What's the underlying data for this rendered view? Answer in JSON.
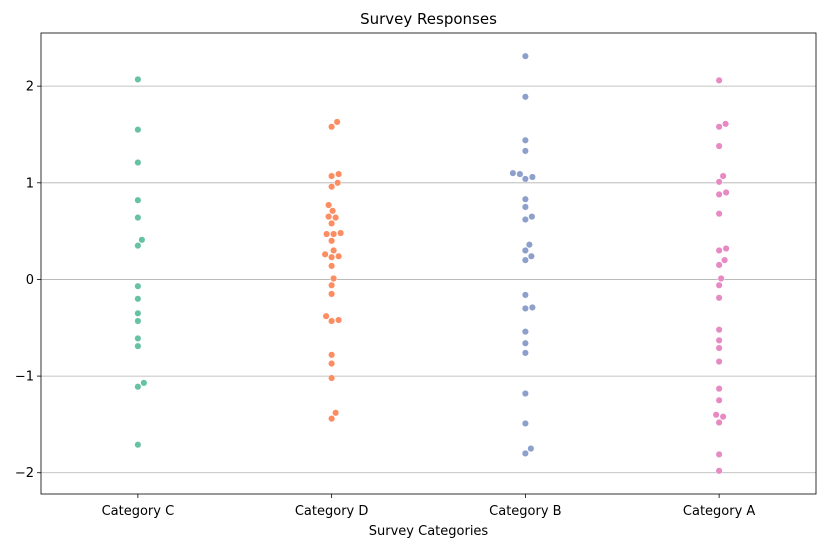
{
  "chart_data": {
    "type": "scatter",
    "title": "Survey Responses",
    "xlabel": "Survey Categories",
    "ylabel": "",
    "categories": [
      "Category C",
      "Category D",
      "Category B",
      "Category A"
    ],
    "ylim": [
      -2.22,
      2.55
    ],
    "yticks": [
      -2,
      -1,
      0,
      1,
      2
    ],
    "ytick_labels": [
      "−2",
      "−1",
      "0",
      "1",
      "2"
    ],
    "grid": "horizontal",
    "series": [
      {
        "category": "Category C",
        "color": "#66c2a5",
        "values": [
          2.07,
          1.55,
          1.21,
          0.82,
          0.64,
          0.41,
          0.35,
          -0.07,
          -0.2,
          -0.35,
          -0.43,
          -0.61,
          -0.69,
          -1.07,
          -1.11,
          -1.71
        ]
      },
      {
        "category": "Category D",
        "color": "#fc8d62",
        "values": [
          1.63,
          1.58,
          1.09,
          1.07,
          1.0,
          0.96,
          0.77,
          0.71,
          0.65,
          0.64,
          0.58,
          0.48,
          0.47,
          0.47,
          0.4,
          0.3,
          0.26,
          0.24,
          0.23,
          0.14,
          0.01,
          -0.06,
          -0.15,
          -0.38,
          -0.42,
          -0.43,
          -0.78,
          -0.87,
          -1.02,
          -1.38,
          -1.44
        ]
      },
      {
        "category": "Category B",
        "color": "#8da0cb",
        "values": [
          2.31,
          1.89,
          1.44,
          1.33,
          1.1,
          1.09,
          1.06,
          1.04,
          0.83,
          0.75,
          0.65,
          0.62,
          0.36,
          0.3,
          0.24,
          0.2,
          -0.16,
          -0.29,
          -0.3,
          -0.54,
          -0.66,
          -0.76,
          -1.18,
          -1.49,
          -1.75,
          -1.8
        ]
      },
      {
        "category": "Category A",
        "color": "#e78ac3",
        "values": [
          2.06,
          1.61,
          1.58,
          1.38,
          1.07,
          1.01,
          0.9,
          0.88,
          0.68,
          0.32,
          0.3,
          0.2,
          0.15,
          0.01,
          -0.06,
          -0.19,
          -0.52,
          -0.63,
          -0.71,
          -0.85,
          -1.13,
          -1.25,
          -1.4,
          -1.42,
          -1.48,
          -1.81,
          -1.98
        ]
      }
    ]
  }
}
